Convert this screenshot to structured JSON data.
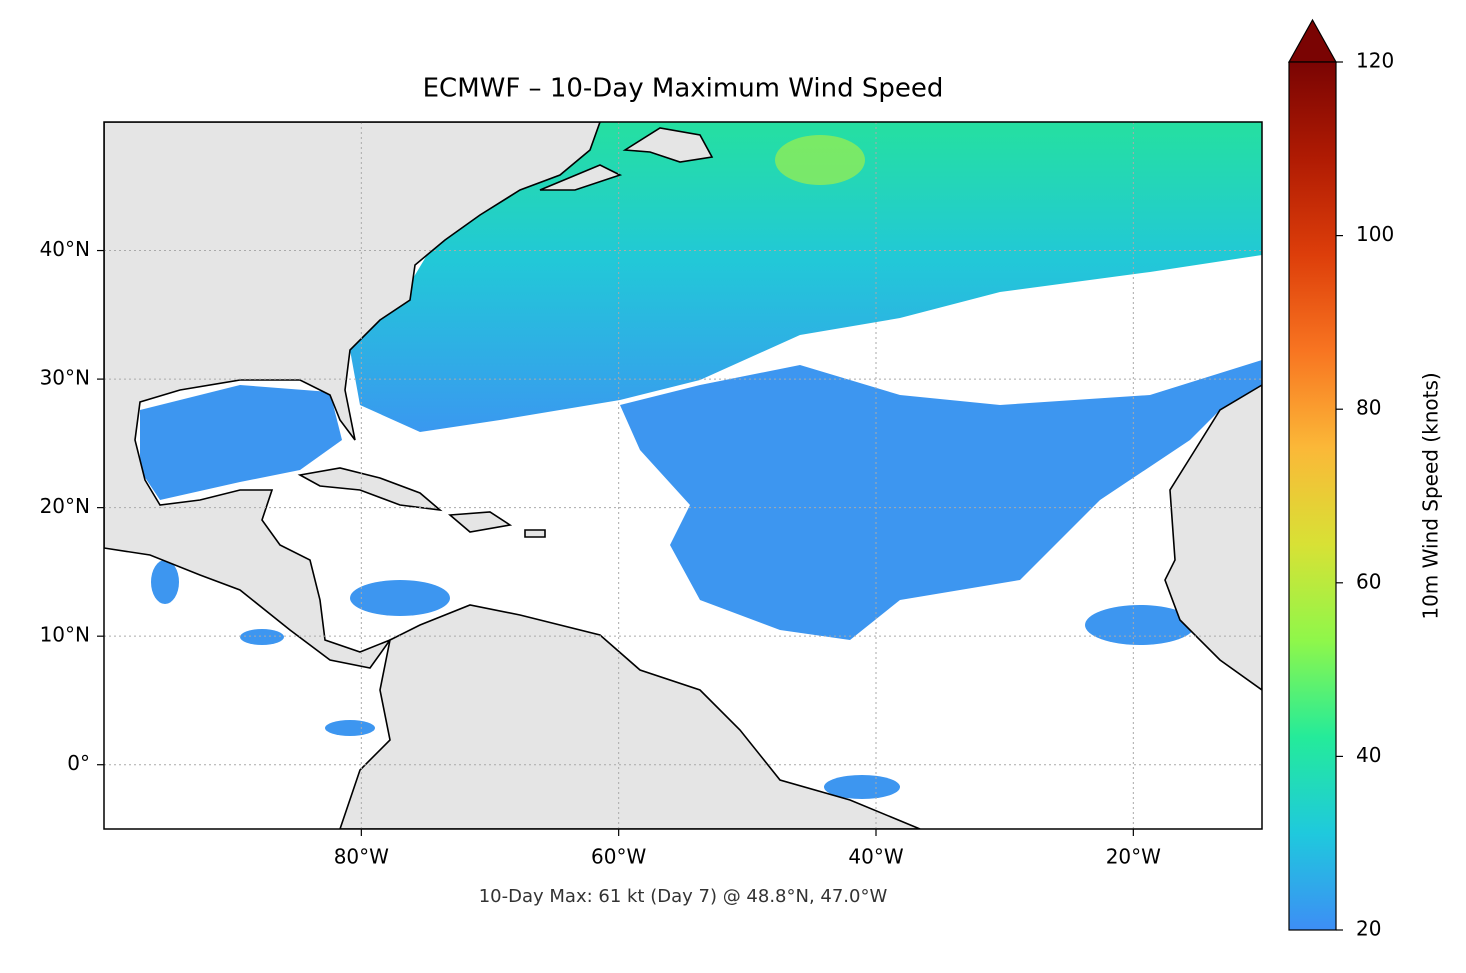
{
  "chart_data": {
    "type": "map",
    "title": "ECMWF – 10-Day Maximum Wind Speed",
    "annotation": "10-Day Max: 61 kt (Day 7) @ 48.8°N, 47.0°W",
    "xlim": [
      -100,
      -10
    ],
    "ylim": [
      -5,
      50
    ],
    "xticks": [
      {
        "value": -80,
        "label": "80°W"
      },
      {
        "value": -60,
        "label": "60°W"
      },
      {
        "value": -40,
        "label": "40°W"
      },
      {
        "value": -20,
        "label": "20°W"
      }
    ],
    "yticks": [
      {
        "value": 0,
        "label": "0°"
      },
      {
        "value": 10,
        "label": "10°N"
      },
      {
        "value": 20,
        "label": "20°N"
      },
      {
        "value": 30,
        "label": "30°N"
      },
      {
        "value": 40,
        "label": "40°N"
      }
    ],
    "grid": true,
    "colorbar": {
      "label": "10m Wind Speed (knots)",
      "lim": [
        20,
        120
      ],
      "ticks": [
        20,
        40,
        60,
        80,
        100,
        120
      ],
      "colors": [
        "#3d8ef5",
        "#1fc9dd",
        "#24eb9a",
        "#8ff74a",
        "#d8e135",
        "#fbb838",
        "#f87521",
        "#dd3e0a",
        "#b01b03",
        "#7a0403"
      ]
    }
  }
}
